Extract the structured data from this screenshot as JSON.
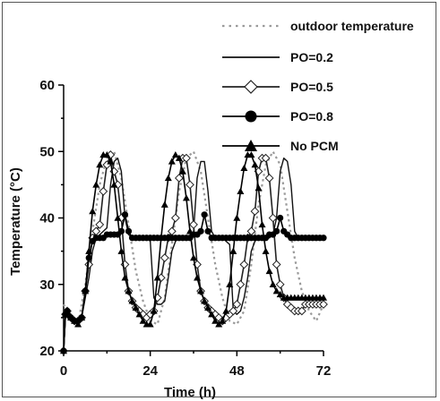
{
  "chart_data": {
    "type": "line",
    "xlabel": "Time (h)",
    "ylabel": "Temperature (°C)",
    "xlim": [
      0,
      72
    ],
    "ylim": [
      20,
      60
    ],
    "xticks": [
      0,
      24,
      48,
      72
    ],
    "yticks": [
      20,
      30,
      40,
      50,
      60
    ],
    "grid": false,
    "legend_position": "top-right",
    "series": [
      {
        "name": "outdoor temperature",
        "style": "dotted",
        "color": "#9a9a9a",
        "marker": "none",
        "x": [
          0,
          2,
          4,
          6,
          8,
          10,
          12,
          14,
          16,
          18,
          20,
          22,
          24,
          26,
          28,
          30,
          32,
          34,
          36,
          38,
          40,
          42,
          44,
          46,
          48,
          50,
          52,
          54,
          56,
          58,
          60,
          62,
          64,
          66,
          68,
          70,
          72
        ],
        "y": [
          27,
          25,
          24,
          30,
          38,
          45,
          49,
          50,
          46,
          39,
          32,
          27.5,
          24.5,
          24,
          28,
          36,
          44,
          49,
          50,
          47,
          40,
          33,
          28,
          24.5,
          24,
          26,
          33,
          42,
          48,
          50,
          48,
          41,
          34,
          29,
          26,
          24.5,
          27
        ]
      },
      {
        "name": "PO=0.2",
        "style": "solid",
        "color": "#111111",
        "marker": "none",
        "x": [
          0,
          0.5,
          1,
          2,
          3,
          4,
          5,
          6,
          7,
          8,
          9,
          10,
          11,
          12,
          13,
          14,
          15,
          16,
          17,
          18,
          19,
          20,
          21,
          22,
          23,
          24,
          25,
          26,
          27,
          28,
          29,
          30,
          31,
          32,
          33,
          34,
          35,
          36,
          37,
          38,
          39,
          40,
          41,
          42,
          43,
          44,
          45,
          46,
          47,
          48,
          49,
          50,
          51,
          52,
          53,
          54,
          55,
          56,
          57,
          58,
          59,
          60,
          61,
          62,
          63,
          64,
          65,
          66,
          67,
          68,
          69,
          70,
          71,
          72
        ],
        "y": [
          20,
          25,
          26,
          25.5,
          24.5,
          24.5,
          25,
          28,
          31,
          35,
          37,
          37.5,
          38,
          38.5,
          45,
          48.5,
          49,
          47,
          40,
          37.5,
          37,
          37,
          37,
          37,
          37,
          36.5,
          28,
          27,
          27,
          27.5,
          31,
          35,
          36.5,
          37,
          37,
          37,
          37,
          38,
          46,
          48.5,
          48.5,
          44,
          38,
          37,
          37,
          37,
          36.5,
          36,
          26,
          25.5,
          26,
          28,
          31,
          35,
          36.5,
          37,
          37,
          37,
          37,
          37.5,
          40,
          47,
          49,
          48.5,
          45,
          38,
          37,
          37,
          37,
          37,
          37,
          37,
          37,
          37
        ]
      },
      {
        "name": "PO=0.5",
        "style": "solid",
        "color": "#222222",
        "marker": "open-diamond",
        "x": [
          0,
          0.5,
          1,
          2,
          3,
          4,
          5,
          6,
          7,
          8,
          9,
          10,
          11,
          12,
          13,
          14,
          15,
          16,
          17,
          18,
          19,
          20,
          21,
          22,
          23,
          24,
          25,
          26,
          27,
          28,
          29,
          30,
          31,
          32,
          33,
          34,
          35,
          36,
          37,
          38,
          39,
          40,
          41,
          42,
          43,
          44,
          45,
          46,
          47,
          48,
          49,
          50,
          51,
          52,
          53,
          54,
          55,
          56,
          57,
          58,
          59,
          60,
          61,
          62,
          63,
          64,
          65,
          66,
          67,
          68,
          69,
          70,
          71,
          72
        ],
        "y": [
          20,
          25.5,
          26,
          25,
          24.5,
          24.5,
          25,
          29,
          33,
          37,
          38,
          39,
          44,
          48,
          49.5,
          47,
          45,
          40,
          33,
          29,
          27.5,
          26.5,
          26,
          25.5,
          25,
          25.5,
          26,
          28,
          31,
          34,
          37,
          38,
          40,
          46,
          49,
          49,
          45,
          39,
          33,
          29,
          27.5,
          26.5,
          26,
          25.5,
          25,
          24.5,
          25,
          25.5,
          26,
          27,
          30,
          33,
          37,
          38,
          41,
          47,
          49,
          49,
          46,
          40,
          33,
          30,
          28,
          27,
          26.5,
          26,
          26,
          26,
          27,
          27,
          27,
          27,
          27,
          27
        ]
      },
      {
        "name": "PO=0.8",
        "style": "solid",
        "color": "#000000",
        "marker": "filled-circle",
        "x": [
          0,
          0.5,
          1,
          2,
          3,
          4,
          5,
          6,
          7,
          8,
          9,
          10,
          11,
          12,
          13,
          14,
          15,
          16,
          17,
          18,
          19,
          20,
          21,
          22,
          23,
          24,
          25,
          26,
          27,
          28,
          29,
          30,
          31,
          32,
          33,
          34,
          35,
          36,
          37,
          38,
          39,
          40,
          41,
          42,
          43,
          44,
          45,
          46,
          47,
          48,
          49,
          50,
          51,
          52,
          53,
          54,
          55,
          56,
          57,
          58,
          59,
          60,
          61,
          62,
          63,
          64,
          65,
          66,
          67,
          68,
          69,
          70,
          71,
          72
        ],
        "y": [
          20,
          25.5,
          26,
          25,
          24.5,
          24.5,
          25,
          29,
          34,
          36.5,
          37,
          37,
          37,
          37.5,
          37.5,
          37.5,
          37.5,
          38,
          40.5,
          38,
          37,
          37,
          37,
          37,
          37,
          37,
          37,
          37,
          37,
          37,
          37,
          37,
          37,
          37,
          37,
          37,
          37,
          37.5,
          37.5,
          38,
          40.5,
          38,
          37,
          37,
          37,
          37,
          37,
          37,
          37,
          37,
          37,
          37,
          37,
          37,
          37,
          37,
          37,
          37,
          37.5,
          37.5,
          38,
          40,
          38,
          37.5,
          37,
          37,
          37,
          37,
          37,
          37,
          37,
          37,
          37,
          37
        ]
      },
      {
        "name": "No PCM",
        "style": "solid",
        "color": "#000000",
        "marker": "filled-triangle",
        "x": [
          0,
          0.5,
          1,
          2,
          3,
          4,
          5,
          6,
          7,
          8,
          9,
          10,
          11,
          12,
          13,
          14,
          15,
          16,
          17,
          18,
          19,
          20,
          21,
          22,
          23,
          24,
          25,
          26,
          27,
          28,
          29,
          30,
          31,
          32,
          33,
          34,
          35,
          36,
          37,
          38,
          39,
          40,
          41,
          42,
          43,
          44,
          45,
          46,
          47,
          48,
          49,
          50,
          51,
          52,
          53,
          54,
          55,
          56,
          57,
          58,
          59,
          60,
          61,
          62,
          63,
          64,
          65,
          66,
          67,
          68,
          69,
          70,
          71,
          72
        ],
        "y": [
          20,
          25.5,
          26,
          25,
          24.5,
          24,
          25,
          29,
          35,
          41,
          45,
          48,
          49.5,
          49.5,
          48.5,
          45,
          40,
          35,
          31,
          29,
          27.5,
          26.5,
          25.5,
          24.5,
          24,
          24,
          26,
          31,
          37,
          42,
          46,
          48.5,
          49.5,
          49,
          47,
          43,
          38,
          34,
          31,
          29,
          27.5,
          26.5,
          25.5,
          24.5,
          24,
          24.5,
          26,
          30,
          35,
          40,
          44,
          47.5,
          49.5,
          49.5,
          48,
          44.5,
          39,
          35,
          32,
          30,
          29,
          28.5,
          28,
          28,
          28,
          28,
          28,
          28,
          28,
          28,
          28,
          28,
          28,
          28
        ]
      }
    ]
  }
}
